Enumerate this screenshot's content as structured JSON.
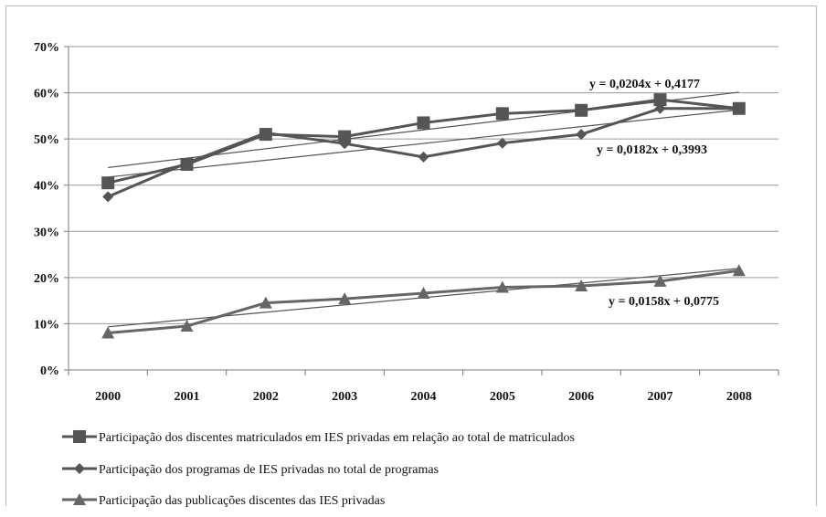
{
  "chart_data": {
    "type": "line",
    "title": "",
    "xlabel": "",
    "ylabel": "",
    "categories": [
      "2000",
      "2001",
      "2002",
      "2003",
      "2004",
      "2005",
      "2006",
      "2007",
      "2008"
    ],
    "ylim": [
      0,
      0.7
    ],
    "yticks": [
      "0%",
      "10%",
      "20%",
      "30%",
      "40%",
      "50%",
      "60%",
      "70%"
    ],
    "grid": "horizontal",
    "legend_position": "bottom",
    "series": [
      {
        "name": "Participação dos discentes matriculados em IES privadas em relação ao total de matriculados",
        "marker": "square",
        "color": "#555555",
        "values": [
          0.405,
          0.445,
          0.51,
          0.505,
          0.535,
          0.555,
          0.562,
          0.585,
          0.566
        ],
        "trendline": {
          "slope": 0.0204,
          "intercept": 0.4177,
          "label": "y = 0,0204x + 0,4177"
        }
      },
      {
        "name": "Participação dos programas de IES privadas no total de programas",
        "marker": "diamond",
        "color": "#555555",
        "values": [
          0.375,
          0.448,
          0.513,
          0.49,
          0.461,
          0.491,
          0.51,
          0.566,
          0.566
        ],
        "trendline": {
          "slope": 0.0182,
          "intercept": 0.3993,
          "label": "y = 0,0182x + 0,3993"
        }
      },
      {
        "name": "Participação das publicações discentes das IES privadas",
        "marker": "triangle",
        "color": "#666666",
        "values": [
          0.08,
          0.095,
          0.145,
          0.154,
          0.166,
          0.179,
          0.182,
          0.192,
          0.215
        ],
        "trendline": {
          "slope": 0.0158,
          "intercept": 0.0775,
          "label": "y = 0,0158x + 0,0775"
        }
      }
    ]
  }
}
